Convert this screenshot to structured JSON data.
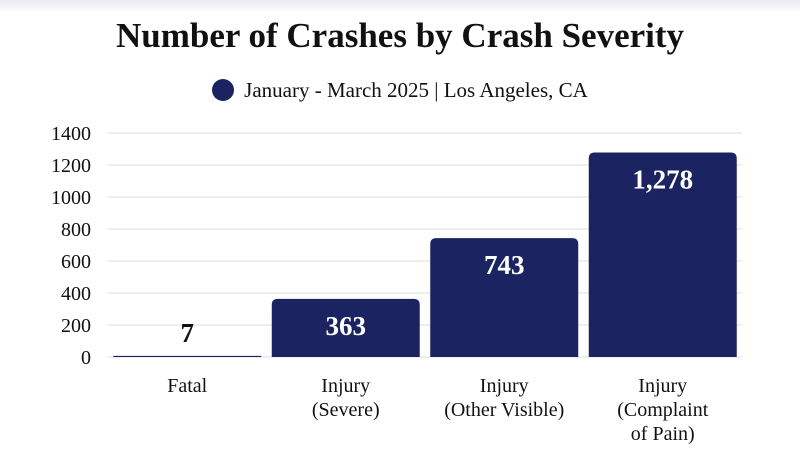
{
  "chart_data": {
    "type": "bar",
    "title": "Number of Crashes by Crash Severity",
    "xlabel": "",
    "ylabel": "",
    "categories": [
      [
        "Fatal"
      ],
      [
        "Injury",
        "(Severe)"
      ],
      [
        "Injury",
        "(Other Visible)"
      ],
      [
        "Injury",
        "(Complaint",
        "of Pain)"
      ]
    ],
    "series": [
      {
        "name": "January - March 2025 | Los Angeles, CA",
        "values": [
          7,
          363,
          743,
          1278
        ],
        "data_labels": [
          "7",
          "363",
          "743",
          "1,278"
        ]
      }
    ],
    "ylim": [
      0,
      1400
    ],
    "yticks": [
      0,
      200,
      400,
      600,
      800,
      1000,
      1200,
      1400
    ],
    "grid": true,
    "legend_position": "top-center",
    "colors": {
      "bar": "#1b2461",
      "label_inside": "#ffffff",
      "label_outside": "#111111",
      "grid": "#dcdcdc"
    }
  }
}
